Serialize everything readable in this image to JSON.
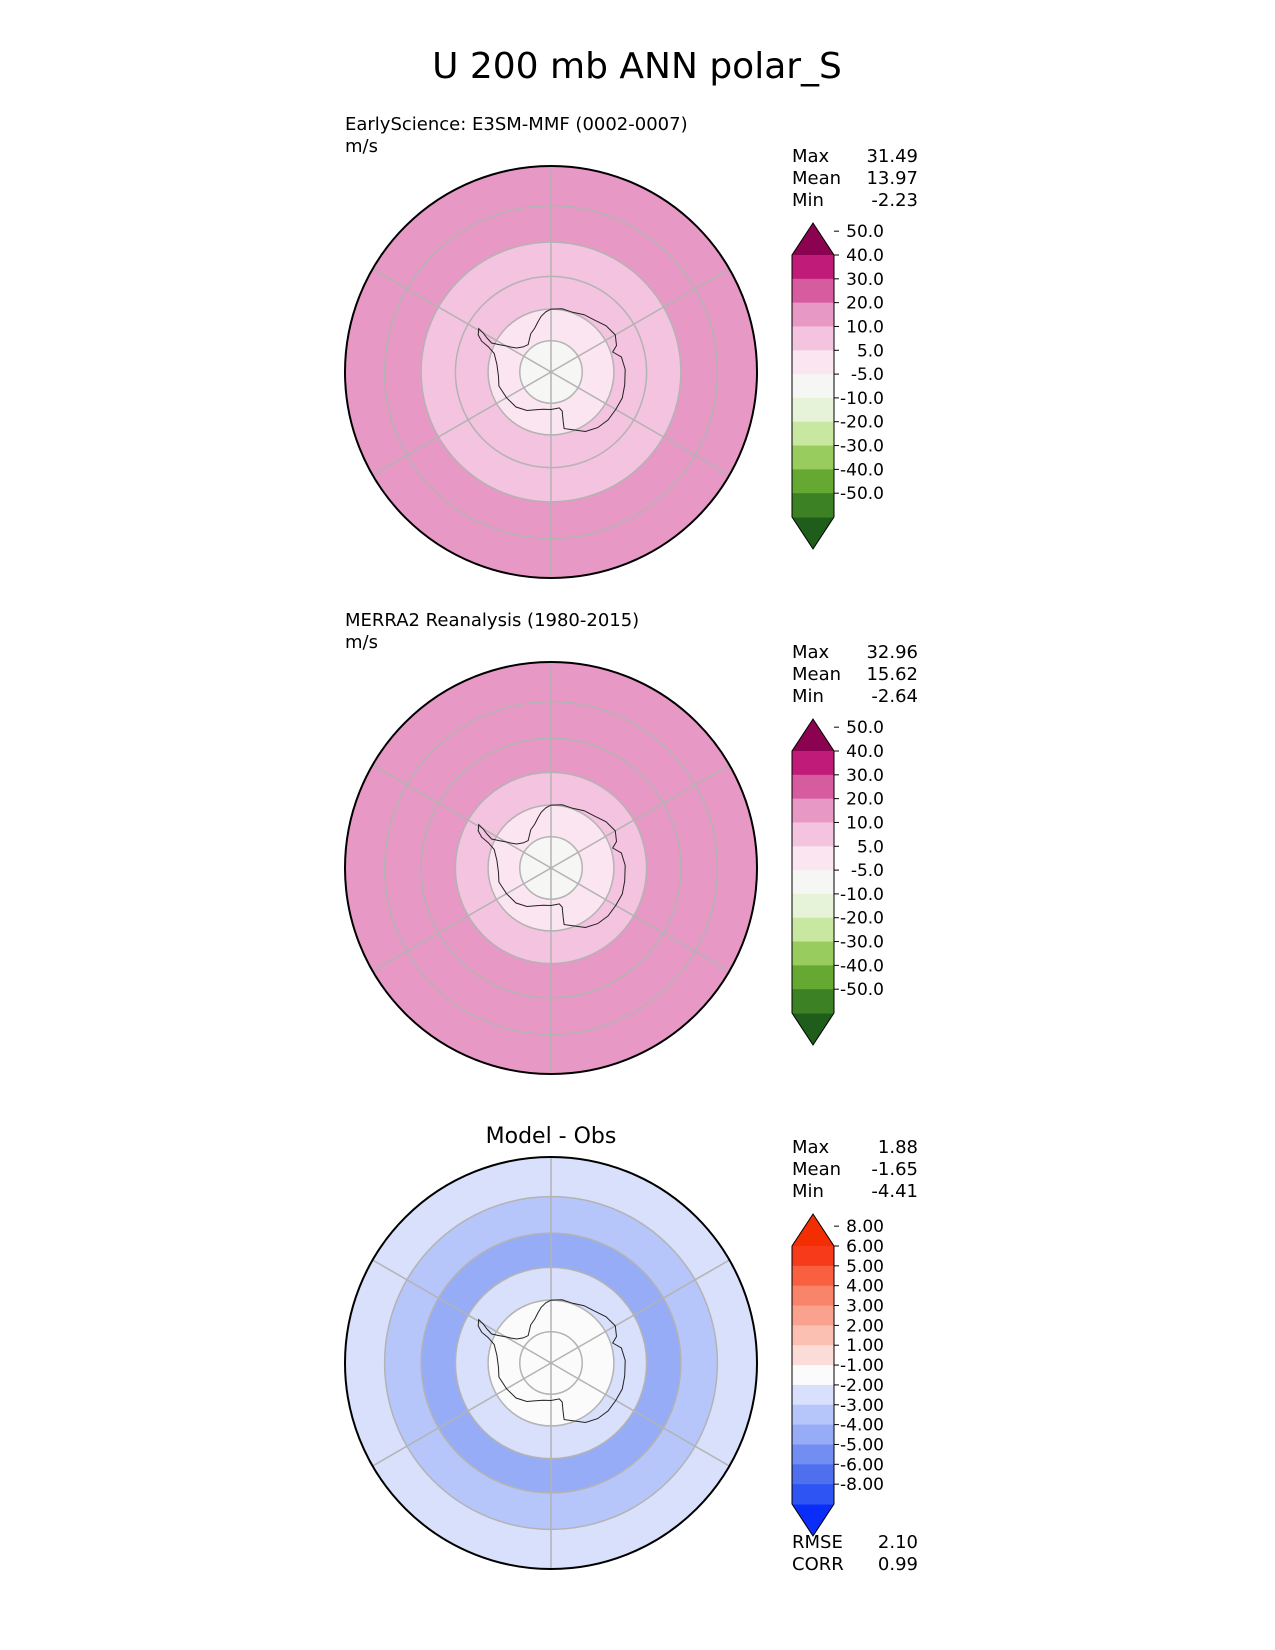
{
  "figure_title": "U 200 mb ANN polar_S",
  "stats_labels": {
    "max": "Max",
    "mean": "Mean",
    "min": "Min",
    "rmse": "RMSE",
    "corr": "CORR"
  },
  "chart_data": [
    {
      "type": "heatmap",
      "projection": "south-polar-stereographic",
      "title": "EarlyScience: E3SM-MMF (0002-0007)",
      "units": "m/s",
      "stats": {
        "max": "31.49",
        "mean": "13.97",
        "min": "-2.23"
      },
      "colorbar": {
        "extend": "both",
        "levels": [
          "-50.0",
          "-40.0",
          "-30.0",
          "-20.0",
          "-10.0",
          "-5.0",
          "5.0",
          "10.0",
          "20.0",
          "30.0",
          "40.0",
          "50.0"
        ],
        "colors": [
          "#1f5d1a",
          "#3c8224",
          "#65a832",
          "#98cc5f",
          "#c8e7a0",
          "#e6f3d8",
          "#f6f6f5",
          "#fbe5f0",
          "#f4c3df",
          "#e898c5",
          "#d65c9f",
          "#c01b78",
          "#8a0250"
        ]
      },
      "zonal_bands": [
        {
          "from_lat": -90,
          "to_lat": -80,
          "value": 3
        },
        {
          "from_lat": -80,
          "to_lat": -70,
          "value": 8
        },
        {
          "from_lat": -70,
          "to_lat": -60,
          "value": 14
        },
        {
          "from_lat": -60,
          "to_lat": -50,
          "value": 19
        },
        {
          "from_lat": -50,
          "to_lat": -40,
          "value": 26
        },
        {
          "from_lat": -40,
          "to_lat": -30,
          "value": 25
        }
      ]
    },
    {
      "type": "heatmap",
      "projection": "south-polar-stereographic",
      "title": "MERRA2 Reanalysis (1980-2015)",
      "units": "m/s",
      "stats": {
        "max": "32.96",
        "mean": "15.62",
        "min": "-2.64"
      },
      "colorbar": {
        "extend": "both",
        "levels": [
          "-50.0",
          "-40.0",
          "-30.0",
          "-20.0",
          "-10.0",
          "-5.0",
          "5.0",
          "10.0",
          "20.0",
          "30.0",
          "40.0",
          "50.0"
        ],
        "colors": [
          "#1f5d1a",
          "#3c8224",
          "#65a832",
          "#98cc5f",
          "#c8e7a0",
          "#e6f3d8",
          "#f6f6f5",
          "#fbe5f0",
          "#f4c3df",
          "#e898c5",
          "#d65c9f",
          "#c01b78",
          "#8a0250"
        ]
      },
      "zonal_bands": [
        {
          "from_lat": -90,
          "to_lat": -80,
          "value": 3
        },
        {
          "from_lat": -80,
          "to_lat": -70,
          "value": 8
        },
        {
          "from_lat": -70,
          "to_lat": -60,
          "value": 16
        },
        {
          "from_lat": -60,
          "to_lat": -50,
          "value": 22
        },
        {
          "from_lat": -50,
          "to_lat": -40,
          "value": 27
        },
        {
          "from_lat": -40,
          "to_lat": -30,
          "value": 26
        }
      ]
    },
    {
      "type": "heatmap",
      "projection": "south-polar-stereographic",
      "title": "Model - Obs",
      "stats": {
        "max": "1.88",
        "mean": "-1.65",
        "min": "-4.41"
      },
      "metrics": {
        "rmse": "2.10",
        "corr": "0.99"
      },
      "colorbar": {
        "extend": "both",
        "levels": [
          "-8.00",
          "-6.00",
          "-5.00",
          "-4.00",
          "-3.00",
          "-2.00",
          "-1.00",
          "1.00",
          "2.00",
          "3.00",
          "4.00",
          "5.00",
          "6.00",
          "8.00"
        ],
        "colors": [
          "#0a2dfa",
          "#2e55f4",
          "#4f70ee",
          "#738ef3",
          "#97acf7",
          "#b7c6fa",
          "#d8e0fb",
          "#fbfbfb",
          "#fbdcd6",
          "#fbc0b2",
          "#fba28e",
          "#fa8469",
          "#f8603f",
          "#f63a1a",
          "#f22e02"
        ]
      },
      "zonal_bands": [
        {
          "from_lat": -90,
          "to_lat": -80,
          "value": 0
        },
        {
          "from_lat": -80,
          "to_lat": -70,
          "value": -0.5
        },
        {
          "from_lat": -70,
          "to_lat": -60,
          "value": -1.5
        },
        {
          "from_lat": -60,
          "to_lat": -50,
          "value": -3.5
        },
        {
          "from_lat": -50,
          "to_lat": -40,
          "value": -2.5
        },
        {
          "from_lat": -40,
          "to_lat": -30,
          "value": -1.5
        }
      ]
    }
  ]
}
